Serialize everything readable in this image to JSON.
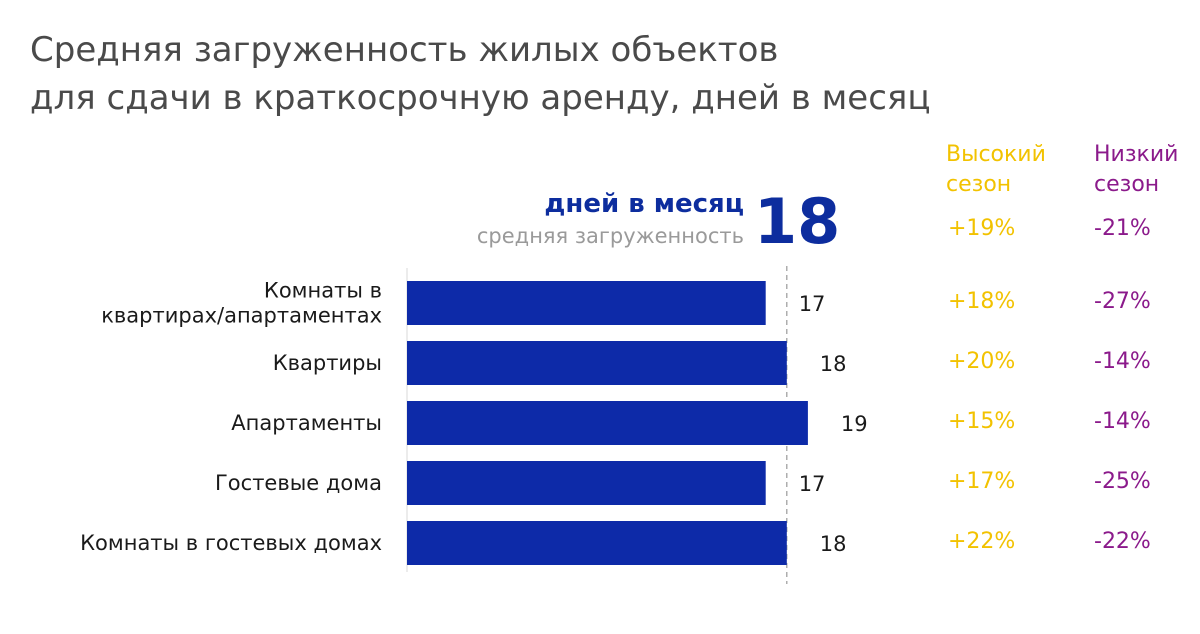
{
  "title": {
    "line1": "Средняя загруженность жилых объектов",
    "line2": "для сдачи в краткосрочную аренду, дней в месяц"
  },
  "headers": {
    "high_season": "Высокий\nсезон",
    "low_season": "Низкий\nсезон"
  },
  "average": {
    "label": "дней в месяц",
    "sublabel": "средняя загруженность",
    "value": "18",
    "high_pct": "+19%",
    "low_pct": "-21%"
  },
  "colors": {
    "bar": "#0d2aa8",
    "high": "#f2c200",
    "low": "#8b1a8b",
    "average": "#0d2d9e"
  },
  "chart_data": {
    "type": "bar",
    "orientation": "horizontal",
    "categories": [
      [
        "Комнаты в",
        "квартирах/апартаментах"
      ],
      [
        "Квартиры"
      ],
      [
        "Апартаменты"
      ],
      [
        "Гостевые дома"
      ],
      [
        "Комнаты в гостевых домах"
      ]
    ],
    "values": [
      17,
      18,
      19,
      17,
      18
    ],
    "value_labels": [
      "17",
      "18",
      "19",
      "17",
      "18"
    ],
    "reference_line": 18,
    "high_season": [
      "+18%",
      "+20%",
      "+15%",
      "+17%",
      "+22%"
    ],
    "low_season": [
      "-27%",
      "-14%",
      "-14%",
      "-25%",
      "-22%"
    ],
    "grid": false,
    "legend": "none"
  }
}
